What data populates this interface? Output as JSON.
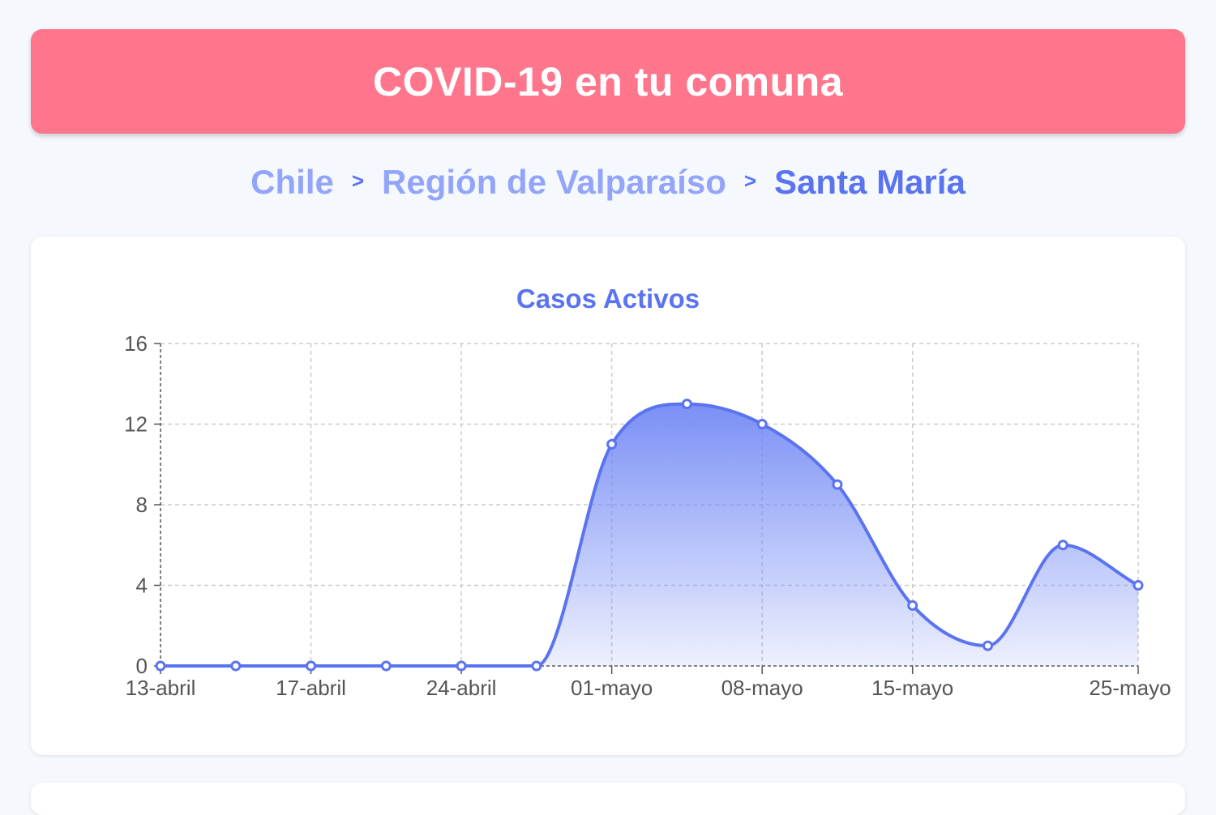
{
  "header": {
    "title": "COVID-19 en tu comuna"
  },
  "breadcrumb": {
    "items": [
      "Chile",
      "Región de Valparaíso",
      "Santa María"
    ],
    "separator": ">"
  },
  "colors": {
    "header_bg": "#ff758c",
    "accent": "#5a73f0",
    "crumb_link": "#93a5fb",
    "page_bg": "#f5f9fd"
  },
  "chart_data": {
    "type": "area",
    "title": "Casos Activos",
    "xlabel": "",
    "ylabel": "",
    "ylim": [
      0,
      16
    ],
    "y_ticks": [
      0,
      4,
      8,
      12,
      16
    ],
    "x_ticks": [
      "13-abril",
      "17-abril",
      "24-abril",
      "01-mayo",
      "08-mayo",
      "15-mayo",
      "25-mayo"
    ],
    "grid": true,
    "legend": "none",
    "series": [
      {
        "values": [
          0,
          0,
          0,
          0,
          0,
          0,
          11,
          13,
          12,
          9,
          3,
          1,
          6,
          4
        ]
      }
    ]
  }
}
